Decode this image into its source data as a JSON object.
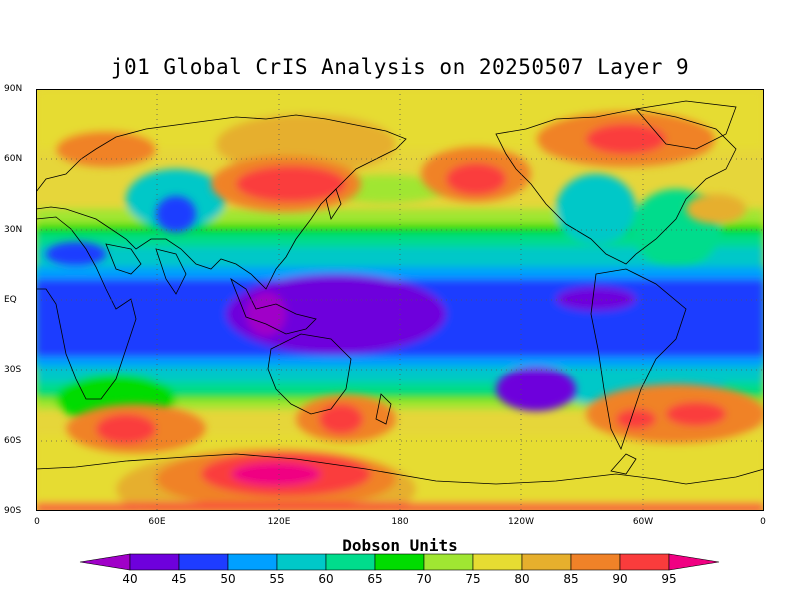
{
  "title": "j01 Global CrIS Analysis on 20250507 Layer 9",
  "y_axis_labels": [
    "90N",
    "60N",
    "30N",
    "EQ",
    "30S",
    "60S",
    "90S"
  ],
  "x_axis_labels": [
    "0",
    "60E",
    "120E",
    "180",
    "120W",
    "60W",
    "0"
  ],
  "colorbar": {
    "title": "Dobson Units",
    "labels": [
      "40",
      "45",
      "50",
      "55",
      "60",
      "65",
      "70",
      "75",
      "80",
      "85",
      "90",
      "95"
    ],
    "colors": [
      "#a000c8",
      "#6e00dc",
      "#1e3cff",
      "#00a0ff",
      "#00c8c8",
      "#00dc8c",
      "#00dc00",
      "#a0e632",
      "#e6dc32",
      "#e6af2d",
      "#f08228",
      "#fa3c3c",
      "#f00082"
    ]
  },
  "map": {
    "background_color": "#e6d63a",
    "coastline_color": "#000000",
    "grid_style": "dotted",
    "features": [
      {
        "name": "tropical-low-band",
        "level": "50"
      },
      {
        "name": "west-pacific-minimum",
        "level": "45"
      },
      {
        "name": "east-asia-high",
        "level": "90"
      },
      {
        "name": "north-pacific-high",
        "level": "90"
      },
      {
        "name": "antarctic-high",
        "level": "95"
      },
      {
        "name": "south-atlantic-high",
        "level": "90"
      }
    ]
  }
}
